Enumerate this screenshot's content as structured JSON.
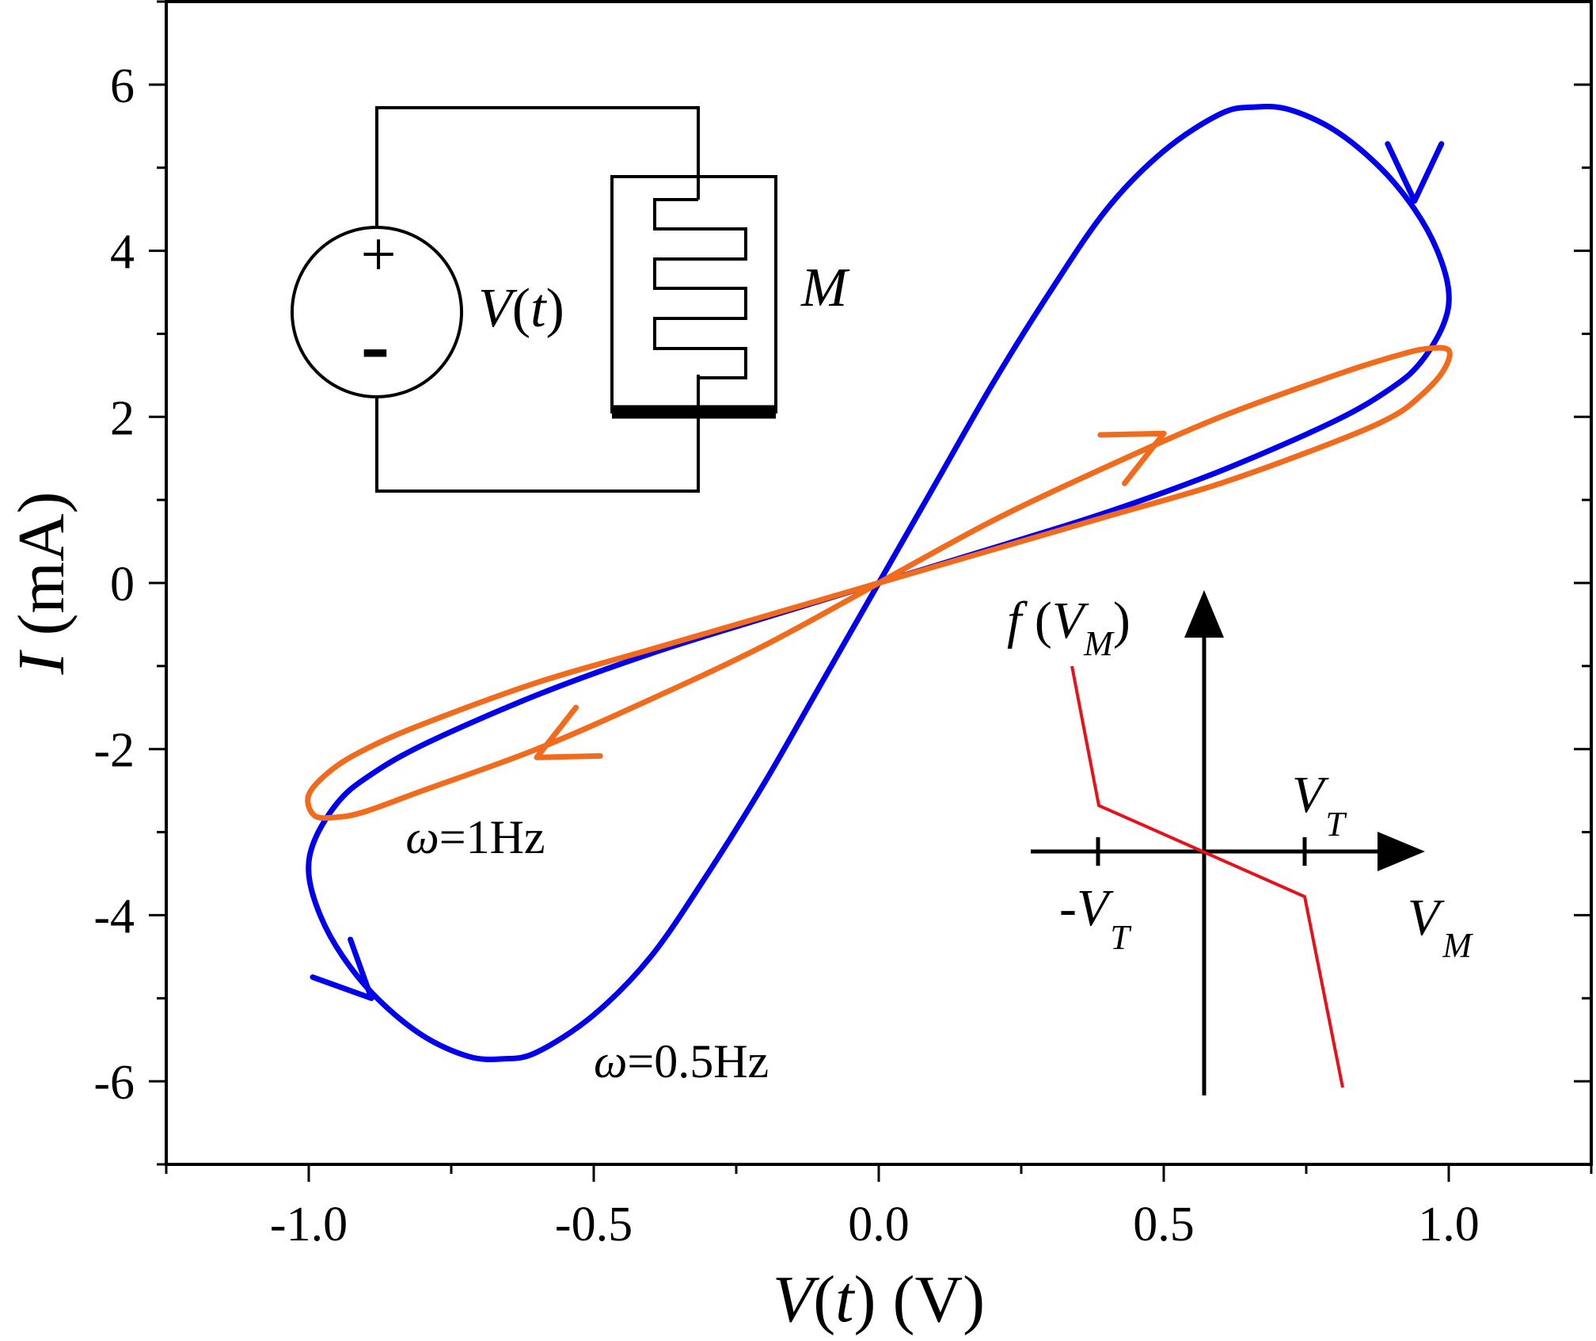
{
  "chart_data": {
    "type": "line",
    "xlabel": {
      "var": "V",
      "arg": "t",
      "unit": "(V)"
    },
    "ylabel": {
      "var": "I",
      "unit": "(mA)"
    },
    "xlim": [
      -1.25,
      1.25
    ],
    "ylim": [
      -7,
      7
    ],
    "xticks": [
      {
        "value": -1.0,
        "label": "-1.0"
      },
      {
        "value": -0.5,
        "label": "-0.5"
      },
      {
        "value": 0.0,
        "label": "0.0"
      },
      {
        "value": 0.5,
        "label": "0.5"
      },
      {
        "value": 1.0,
        "label": "1.0"
      }
    ],
    "yticks": [
      {
        "value": -6,
        "label": "-6"
      },
      {
        "value": -4,
        "label": "-4"
      },
      {
        "value": -2,
        "label": "-2"
      },
      {
        "value": 0,
        "label": "0"
      },
      {
        "value": 2,
        "label": "2"
      },
      {
        "value": 4,
        "label": "4"
      },
      {
        "value": 6,
        "label": "6"
      }
    ],
    "grid": false,
    "series": [
      {
        "label": {
          "symbol": "ω",
          "text": "=0.5Hz"
        },
        "color": "#0000ee",
        "x": [
          0.0,
          0.1,
          0.2,
          0.3,
          0.4,
          0.5,
          0.6,
          0.66,
          0.72,
          0.8,
          0.88,
          0.94,
          0.98,
          1.0,
          0.99,
          0.95,
          0.9,
          0.8,
          0.6,
          0.4,
          0.2,
          0.0,
          -0.2,
          -0.4,
          -0.6,
          -0.8,
          -0.9,
          -0.95,
          -0.99,
          -1.0,
          -0.98,
          -0.94,
          -0.88,
          -0.8,
          -0.72,
          -0.66,
          -0.6,
          -0.5,
          -0.4,
          -0.3,
          -0.2,
          -0.1,
          0.0
        ],
        "y": [
          0.0,
          1.2,
          2.4,
          3.5,
          4.5,
          5.2,
          5.65,
          5.73,
          5.7,
          5.45,
          5.0,
          4.5,
          4.0,
          3.5,
          3.1,
          2.65,
          2.35,
          1.95,
          1.35,
          0.85,
          0.42,
          0.0,
          -0.42,
          -0.85,
          -1.35,
          -1.95,
          -2.35,
          -2.65,
          -3.1,
          -3.5,
          -4.0,
          -4.5,
          -5.0,
          -5.45,
          -5.7,
          -5.73,
          -5.65,
          -5.2,
          -4.5,
          -3.5,
          -2.4,
          -1.2,
          0.0
        ],
        "arrows": [
          {
            "x": 0.94,
            "y": 4.6,
            "direction": "down"
          },
          {
            "x": -0.89,
            "y": -5.0,
            "direction": "down-right"
          }
        ]
      },
      {
        "label": {
          "symbol": "ω",
          "text": "=1Hz"
        },
        "color": "#f26a1b",
        "x": [
          0.0,
          0.2,
          0.4,
          0.6,
          0.8,
          0.9,
          0.96,
          1.0,
          0.99,
          0.95,
          0.9,
          0.8,
          0.6,
          0.4,
          0.2,
          0.0,
          -0.2,
          -0.4,
          -0.6,
          -0.8,
          -0.9,
          -0.96,
          -1.0,
          -0.99,
          -0.95,
          -0.9,
          -0.8,
          -0.6,
          -0.4,
          -0.2,
          0.0
        ],
        "y": [
          0.0,
          0.75,
          1.4,
          2.0,
          2.5,
          2.72,
          2.82,
          2.8,
          2.55,
          2.25,
          2.0,
          1.7,
          1.2,
          0.8,
          0.4,
          0.0,
          -0.4,
          -0.8,
          -1.2,
          -1.7,
          -2.0,
          -2.25,
          -2.55,
          -2.8,
          -2.82,
          -2.75,
          -2.5,
          -2.0,
          -1.4,
          -0.75,
          0.0
        ],
        "arrows": [
          {
            "x": 0.5,
            "y": 1.8,
            "direction": "up-right"
          },
          {
            "x": -0.6,
            "y": -2.1,
            "direction": "down-left"
          }
        ]
      }
    ],
    "annotations": [
      {
        "symbol": "ω",
        "text": "=1Hz",
        "x": -0.83,
        "y": -3.25
      },
      {
        "symbol": "ω",
        "text": "=0.5Hz",
        "x": -0.5,
        "y": -5.95
      }
    ]
  },
  "circuit_inset": {
    "source_label": {
      "var": "V",
      "arg": "t"
    },
    "plus": "+",
    "minus": "-",
    "memristor_label": "M"
  },
  "threshold_inset": {
    "y_label": {
      "func": "f",
      "var": "V",
      "sub": "M"
    },
    "x_label": {
      "var": "V",
      "sub": "M"
    },
    "pos_threshold": {
      "var": "V",
      "sub": "T"
    },
    "neg_threshold": {
      "sign": "-",
      "var": "V",
      "sub": "T"
    },
    "line_color": "#e8101a"
  }
}
